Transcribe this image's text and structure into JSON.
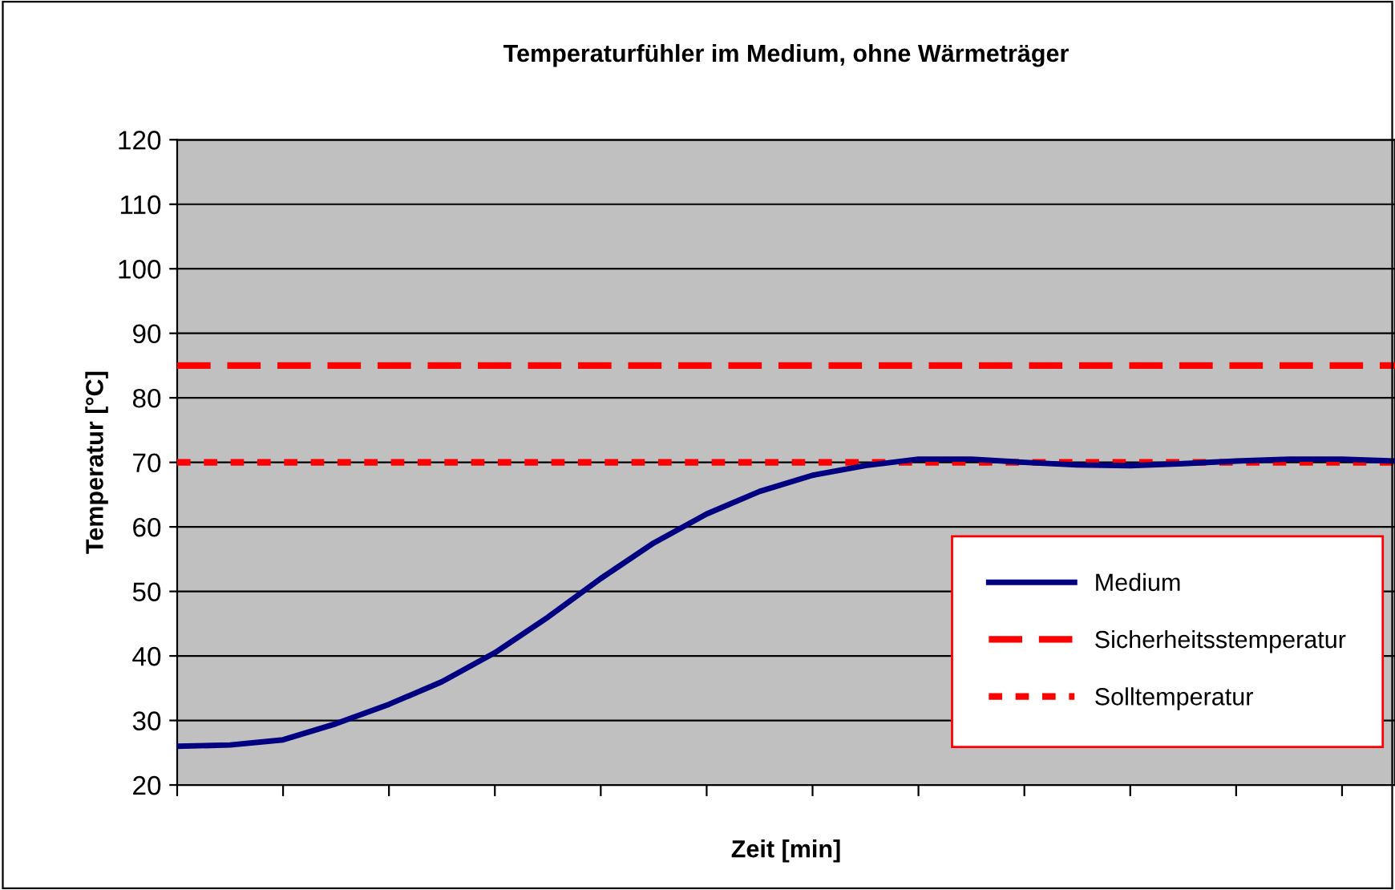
{
  "chart_data": {
    "type": "line",
    "title": "Temperaturfühler im Medium, ohne Wärmeträger",
    "xlabel": "Zeit [min]",
    "ylabel": "Temperatur [°C]",
    "categories": [
      null,
      null,
      null,
      null,
      null,
      null,
      null,
      null,
      null,
      null,
      null,
      null,
      null,
      null,
      null,
      null,
      null,
      null,
      null,
      null,
      null,
      null,
      null,
      null
    ],
    "series": [
      {
        "name": "Medium",
        "color": "#000080",
        "values": [
          26,
          26.2,
          27,
          29.5,
          32.5,
          36,
          40.5,
          46,
          52,
          57.5,
          62,
          65.5,
          68,
          69.5,
          70.5,
          70.5,
          70,
          69.6,
          69.5,
          69.8,
          70.2,
          70.5,
          70.5,
          70.2
        ]
      }
    ],
    "ref_lines": [
      {
        "axis": "y",
        "value": 85,
        "label": "Sicherheitsstemperatur",
        "color": "#ff0000",
        "line_style": "dashed"
      },
      {
        "axis": "y",
        "value": 70,
        "label": "Solltemperatur",
        "color": "#ff0000",
        "line_style": "dotted"
      }
    ],
    "ylim": [
      20,
      120
    ],
    "yticks": [
      20,
      30,
      40,
      50,
      60,
      70,
      80,
      90,
      100,
      110,
      120
    ],
    "grid": "y",
    "legend": "bottom right",
    "marker": "none",
    "line_style": "solid"
  }
}
